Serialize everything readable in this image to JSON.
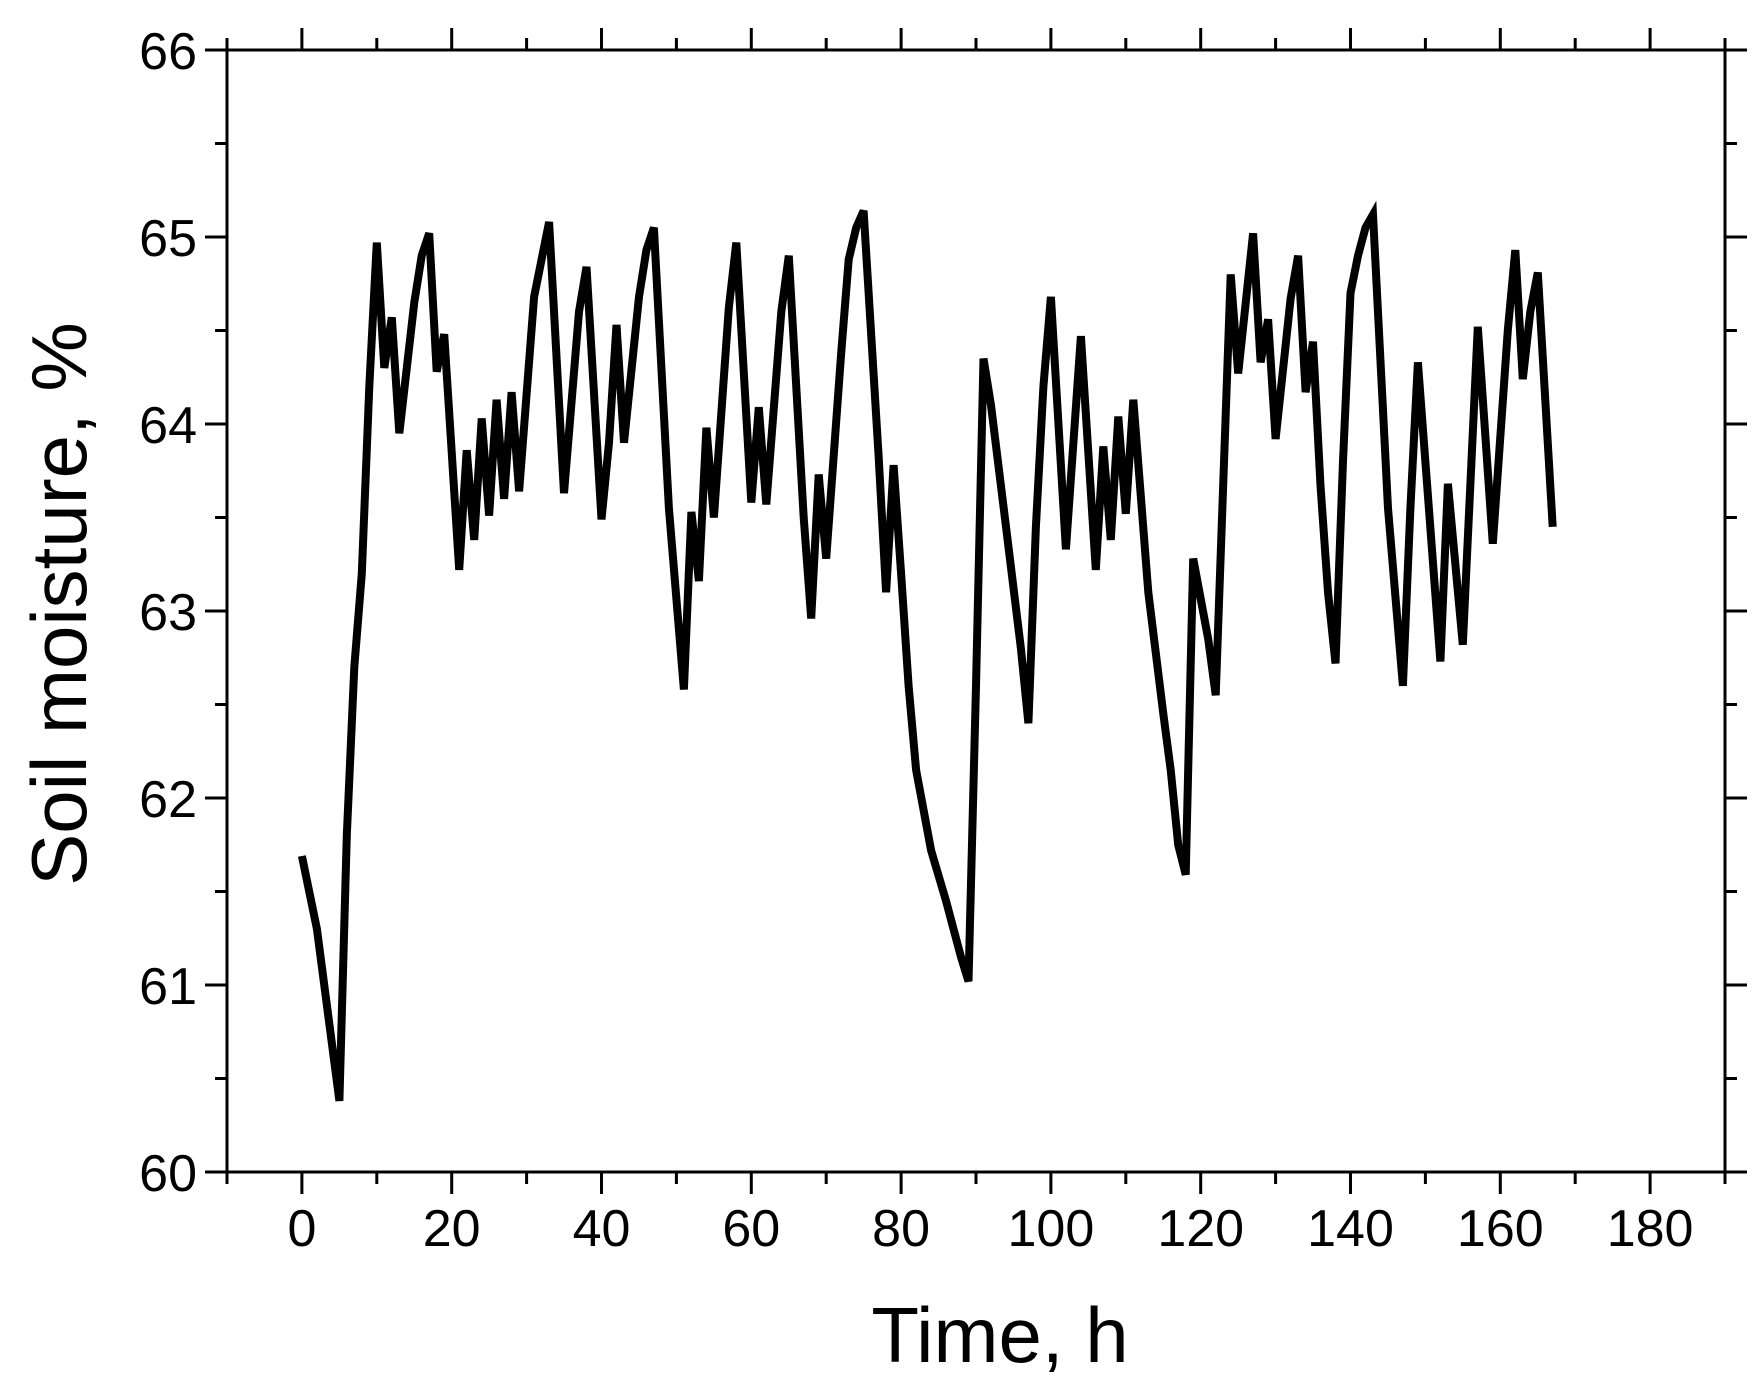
{
  "chart_data": {
    "type": "line",
    "title": "",
    "xlabel": "Time, h",
    "ylabel": "Soil moisture, %",
    "xlim": [
      -10,
      190
    ],
    "ylim": [
      60,
      66
    ],
    "x_ticks": [
      0,
      20,
      40,
      60,
      80,
      100,
      120,
      140,
      160,
      180
    ],
    "y_ticks": [
      60,
      61,
      62,
      63,
      64,
      65,
      66
    ],
    "grid": false,
    "legend": "none",
    "line_color": "#000000",
    "series": [
      {
        "points": [
          [
            0,
            61.69
          ],
          [
            2,
            61.3
          ],
          [
            5,
            60.38
          ],
          [
            6,
            61.8
          ],
          [
            7,
            62.7
          ],
          [
            8,
            63.2
          ],
          [
            9,
            64.2
          ],
          [
            10,
            64.97
          ],
          [
            11,
            64.3
          ],
          [
            12,
            64.57
          ],
          [
            13,
            63.95
          ],
          [
            15,
            64.65
          ],
          [
            16,
            64.9
          ],
          [
            17,
            65.02
          ],
          [
            18,
            64.28
          ],
          [
            19,
            64.48
          ],
          [
            21,
            63.22
          ],
          [
            22,
            63.86
          ],
          [
            23,
            63.38
          ],
          [
            24,
            64.03
          ],
          [
            25,
            63.51
          ],
          [
            26,
            64.13
          ],
          [
            27,
            63.6
          ],
          [
            28,
            64.17
          ],
          [
            29,
            63.64
          ],
          [
            31,
            64.68
          ],
          [
            33,
            65.08
          ],
          [
            35,
            63.63
          ],
          [
            37,
            64.6
          ],
          [
            38,
            64.84
          ],
          [
            40,
            63.49
          ],
          [
            41,
            63.9
          ],
          [
            42,
            64.53
          ],
          [
            43,
            63.9
          ],
          [
            45,
            64.68
          ],
          [
            46,
            64.93
          ],
          [
            47,
            65.05
          ],
          [
            49,
            63.55
          ],
          [
            51,
            62.58
          ],
          [
            52,
            63.53
          ],
          [
            53,
            63.16
          ],
          [
            54,
            63.98
          ],
          [
            55,
            63.5
          ],
          [
            57,
            64.62
          ],
          [
            58,
            64.97
          ],
          [
            60,
            63.58
          ],
          [
            61,
            64.09
          ],
          [
            62,
            63.57
          ],
          [
            64,
            64.6
          ],
          [
            65,
            64.9
          ],
          [
            67,
            63.5
          ],
          [
            68,
            62.96
          ],
          [
            69,
            63.73
          ],
          [
            70,
            63.28
          ],
          [
            72,
            64.38
          ],
          [
            73,
            64.88
          ],
          [
            74,
            65.05
          ],
          [
            75,
            65.14
          ],
          [
            77,
            63.83
          ],
          [
            78,
            63.1
          ],
          [
            79,
            63.78
          ],
          [
            80,
            63.2
          ],
          [
            81,
            62.6
          ],
          [
            82,
            62.15
          ],
          [
            84,
            61.72
          ],
          [
            86,
            61.45
          ],
          [
            88,
            61.15
          ],
          [
            89,
            61.02
          ],
          [
            90,
            62.6
          ],
          [
            91,
            64.35
          ],
          [
            92,
            64.1
          ],
          [
            94,
            63.45
          ],
          [
            96,
            62.8
          ],
          [
            97,
            62.4
          ],
          [
            98,
            63.45
          ],
          [
            99,
            64.2
          ],
          [
            100,
            64.68
          ],
          [
            102,
            63.33
          ],
          [
            104,
            64.47
          ],
          [
            106,
            63.22
          ],
          [
            107,
            63.88
          ],
          [
            108,
            63.38
          ],
          [
            109,
            64.04
          ],
          [
            110,
            63.52
          ],
          [
            111,
            64.13
          ],
          [
            113,
            63.1
          ],
          [
            115,
            62.45
          ],
          [
            116,
            62.15
          ],
          [
            117,
            61.75
          ],
          [
            118,
            61.59
          ],
          [
            119,
            63.28
          ],
          [
            121,
            62.85
          ],
          [
            122,
            62.55
          ],
          [
            124,
            64.8
          ],
          [
            125,
            64.27
          ],
          [
            127,
            65.02
          ],
          [
            128,
            64.33
          ],
          [
            129,
            64.56
          ],
          [
            130,
            63.92
          ],
          [
            132,
            64.67
          ],
          [
            133,
            64.9
          ],
          [
            134,
            64.17
          ],
          [
            135,
            64.44
          ],
          [
            136,
            63.67
          ],
          [
            137,
            63.1
          ],
          [
            138,
            62.72
          ],
          [
            139,
            63.8
          ],
          [
            140,
            64.7
          ],
          [
            141,
            64.9
          ],
          [
            142,
            65.05
          ],
          [
            143,
            65.12
          ],
          [
            145,
            63.55
          ],
          [
            147,
            62.6
          ],
          [
            148,
            63.55
          ],
          [
            149,
            64.33
          ],
          [
            152,
            62.73
          ],
          [
            153,
            63.68
          ],
          [
            155,
            62.82
          ],
          [
            157,
            64.52
          ],
          [
            159,
            63.36
          ],
          [
            161,
            64.5
          ],
          [
            162,
            64.93
          ],
          [
            163,
            64.24
          ],
          [
            164,
            64.6
          ],
          [
            165,
            64.81
          ],
          [
            167,
            63.45
          ]
        ]
      }
    ]
  }
}
